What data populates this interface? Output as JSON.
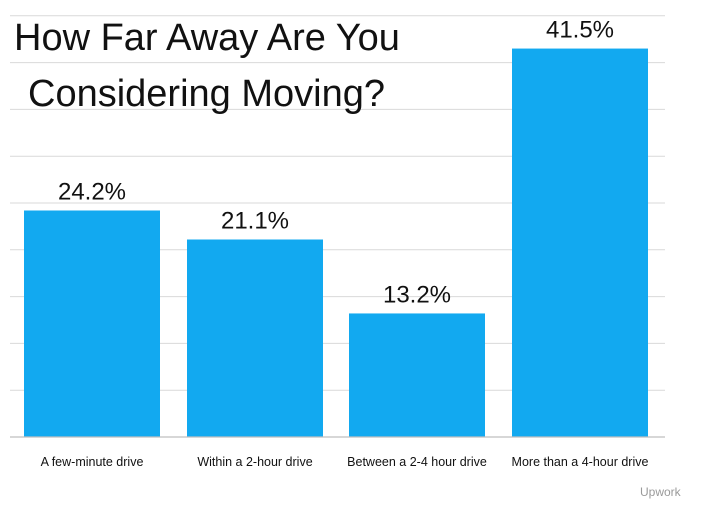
{
  "chart_data": {
    "type": "bar",
    "title_lines": [
      "How Far Away Are You",
      "Considering Moving?"
    ],
    "categories": [
      "A few-minute drive",
      "Within a 2-hour drive",
      "Between a 2-4 hour drive",
      "More than a 4-hour drive"
    ],
    "values": [
      24.2,
      21.1,
      13.2,
      41.5
    ],
    "data_labels": [
      "24.2%",
      "21.1%",
      "13.2%",
      "41.5%"
    ],
    "ylim": [
      0,
      45
    ],
    "grid": true,
    "bar_color": "#12a9f0",
    "source": "Upwork"
  }
}
